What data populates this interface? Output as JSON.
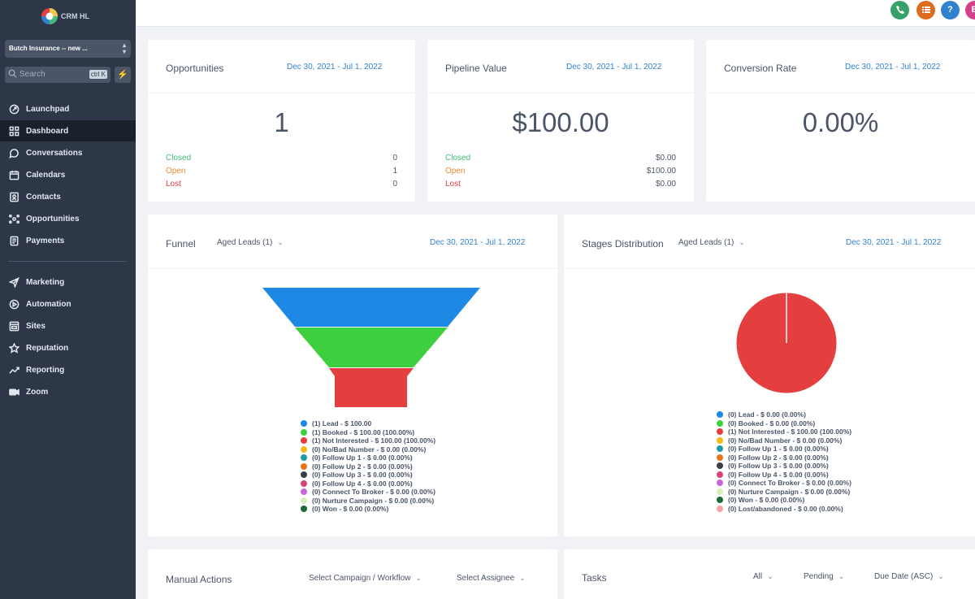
{
  "sidebar": {
    "logo_text": "CRM HL",
    "account": "Butch Insurance -- new ...",
    "search_placeholder": "Search",
    "search_shortcut": "ctrl K",
    "items_top": [
      {
        "label": "Launchpad",
        "icon": "rocket-icon"
      },
      {
        "label": "Dashboard",
        "icon": "grid-icon",
        "active": true
      },
      {
        "label": "Conversations",
        "icon": "chat-icon"
      },
      {
        "label": "Calendars",
        "icon": "calendar-icon"
      },
      {
        "label": "Contacts",
        "icon": "contacts-icon"
      },
      {
        "label": "Opportunities",
        "icon": "opportunities-icon"
      },
      {
        "label": "Payments",
        "icon": "payments-icon"
      }
    ],
    "items_bottom": [
      {
        "label": "Marketing",
        "icon": "send-icon"
      },
      {
        "label": "Automation",
        "icon": "automation-icon"
      },
      {
        "label": "Sites",
        "icon": "sites-icon"
      },
      {
        "label": "Reputation",
        "icon": "star-icon"
      },
      {
        "label": "Reporting",
        "icon": "trend-icon"
      },
      {
        "label": "Zoom",
        "icon": "video-icon"
      }
    ]
  },
  "topbar": {
    "buttons": [
      {
        "icon": "phone-icon",
        "color": "#38a169"
      },
      {
        "icon": "list-icon",
        "color": "#dd6b20"
      },
      {
        "icon": "help-icon",
        "color": "#3182ce",
        "label": "?"
      },
      {
        "icon": "avatar-icon",
        "color": "#d53f8c",
        "label": "B"
      }
    ]
  },
  "opportunities": {
    "title": "Opportunities",
    "date_range": "Dec 30, 2021 - Jul 1, 2022",
    "value": "1",
    "rows": [
      {
        "label": "Closed",
        "value": "0"
      },
      {
        "label": "Open",
        "value": "1"
      },
      {
        "label": "Lost",
        "value": "0"
      }
    ]
  },
  "pipeline": {
    "title": "Pipeline Value",
    "date_range": "Dec 30, 2021 - Jul 1, 2022",
    "value": "$100.00",
    "rows": [
      {
        "label": "Closed",
        "value": "$0.00"
      },
      {
        "label": "Open",
        "value": "$100.00"
      },
      {
        "label": "Lost",
        "value": "$0.00"
      }
    ]
  },
  "conversion": {
    "title": "Conversion Rate",
    "date_range": "Dec 30, 2021 - Jul 1, 2022",
    "value": "0.00%"
  },
  "funnel": {
    "title": "Funnel",
    "pipeline": "Aged Leads (1)",
    "date_range": "Dec 30, 2021 - Jul 1, 2022",
    "legend": [
      {
        "text": "(1) Lead - $ 100.00",
        "color": "#1e88e5"
      },
      {
        "text": "(1) Booked - $ 100.00 (100.00%)",
        "color": "#3ecf3e"
      },
      {
        "text": "(1) Not Interested - $ 100.00 (100.00%)",
        "color": "#e53e3e"
      },
      {
        "text": "(0) No/Bad Number - $ 0.00 (0.00%)",
        "color": "#f6b916"
      },
      {
        "text": "(0) Follow Up 1 - $ 0.00 (0.00%)",
        "color": "#1f9aa8"
      },
      {
        "text": "(0) Follow Up 2 - $ 0.00 (0.00%)",
        "color": "#e8751a"
      },
      {
        "text": "(0) Follow Up 3 - $ 0.00 (0.00%)",
        "color": "#3a3f47"
      },
      {
        "text": "(0) Follow Up 4 - $ 0.00 (0.00%)",
        "color": "#d6437b"
      },
      {
        "text": "(0) Connect To Broker - $ 0.00 (0.00%)",
        "color": "#c865e0"
      },
      {
        "text": "(0) Nurture Campaign - $ 0.00 (0.00%)",
        "color": "#d4efb8"
      },
      {
        "text": "(0) Won - $ 0.00 (0.00%)",
        "color": "#1a6b3a"
      }
    ]
  },
  "stages": {
    "title": "Stages Distribution",
    "pipeline": "Aged Leads (1)",
    "date_range": "Dec 30, 2021 - Jul 1, 2022",
    "legend": [
      {
        "text": "(0) Lead - $ 0.00 (0.00%)",
        "color": "#1e88e5"
      },
      {
        "text": "(0) Booked - $ 0.00 (0.00%)",
        "color": "#3ecf3e"
      },
      {
        "text": "(1) Not Interested - $ 100.00 (100.00%)",
        "color": "#e53e3e"
      },
      {
        "text": "(0) No/Bad Number - $ 0.00 (0.00%)",
        "color": "#f6b916"
      },
      {
        "text": "(0) Follow Up 1 - $ 0.00 (0.00%)",
        "color": "#1f9aa8"
      },
      {
        "text": "(0) Follow Up 2 - $ 0.00 (0.00%)",
        "color": "#e8751a"
      },
      {
        "text": "(0) Follow Up 3 - $ 0.00 (0.00%)",
        "color": "#3a3f47"
      },
      {
        "text": "(0) Follow Up 4 - $ 0.00 (0.00%)",
        "color": "#d6437b"
      },
      {
        "text": "(0) Connect To Broker - $ 0.00 (0.00%)",
        "color": "#c865e0"
      },
      {
        "text": "(0) Nurture Campaign - $ 0.00 (0.00%)",
        "color": "#d4efb8"
      },
      {
        "text": "(0) Won - $ 0.00 (0.00%)",
        "color": "#1a6b3a"
      },
      {
        "text": "(0) Lost/abandoned - $ 0.00 (0.00%)",
        "color": "#f4a4a4"
      }
    ]
  },
  "manual_actions": {
    "title": "Manual Actions",
    "campaign_select": "Select Campaign / Workflow",
    "assignee_select": "Select Assignee"
  },
  "tasks": {
    "title": "Tasks",
    "filter_all": "All",
    "filter_status": "Pending",
    "sort": "Due Date (ASC)"
  },
  "chart_data": [
    {
      "type": "funnel",
      "title": "Funnel",
      "categories": [
        "Lead",
        "Booked",
        "Not Interested"
      ],
      "values": [
        1,
        1,
        1
      ],
      "colors": [
        "#1e88e5",
        "#3ecf3e",
        "#e53e3e"
      ]
    },
    {
      "type": "pie",
      "title": "Stages Distribution",
      "categories": [
        "Not Interested"
      ],
      "values": [
        1
      ],
      "colors": [
        "#e53e3e"
      ]
    }
  ]
}
